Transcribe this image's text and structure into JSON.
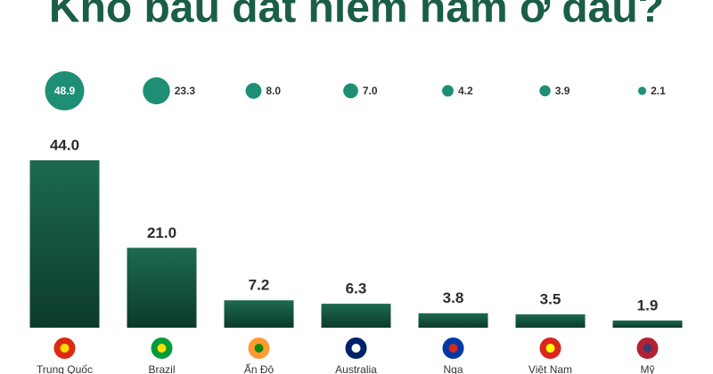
{
  "chart_data": {
    "type": "bar",
    "title": "Kho báu đất hiếm nằm ở đâu?",
    "categories": [
      "Trung Quốc",
      "Brazil",
      "Ấn Độ",
      "Australia",
      "Nga",
      "Việt Nam",
      "Mỹ"
    ],
    "series": [
      {
        "type": "bar",
        "color": "#155c45",
        "values": [
          44.0,
          21.0,
          7.2,
          6.3,
          3.8,
          3.5,
          1.9
        ],
        "value_labels": [
          "44.0",
          "21.0",
          "7.2",
          "6.3",
          "3.8",
          "3.5",
          "1.9"
        ]
      },
      {
        "type": "bubble",
        "color": "#1e8f74",
        "values": [
          48.9,
          23.3,
          8.0,
          7.0,
          4.2,
          3.9,
          2.1
        ],
        "value_labels": [
          "48.9",
          "23.3",
          "8.0",
          "7.0",
          "4.2",
          "3.9",
          "2.1"
        ]
      }
    ],
    "ylim": [
      0,
      44
    ]
  }
}
